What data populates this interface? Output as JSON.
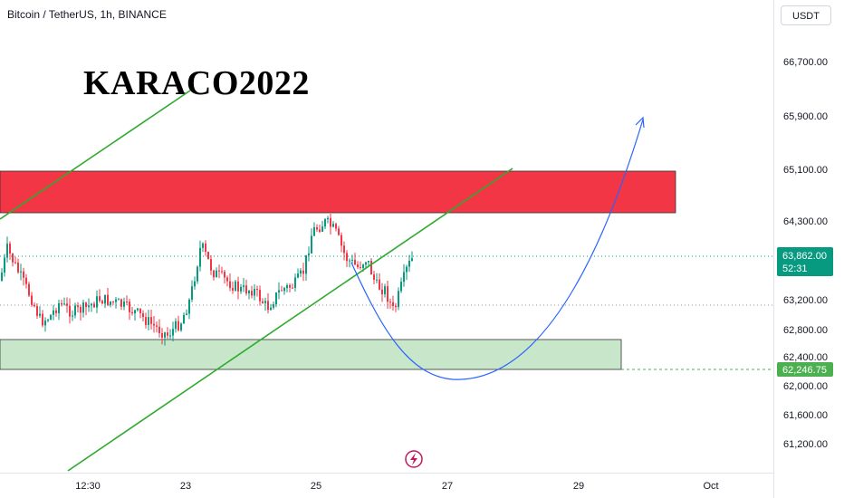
{
  "header": {
    "title": "Bitcoin / TetherUS, 1h, BINANCE"
  },
  "watermark": "KARACO2022",
  "currency": "USDT",
  "chart_data": {
    "type": "candlestick",
    "symbol": "BTCUSDT",
    "y_ticks": [
      "66,700.00",
      "65,900.00",
      "65,100.00",
      "64,300.00",
      "63,200.00",
      "62,800.00",
      "62,400.00",
      "62,000.00",
      "61,600.00",
      "61,200.00"
    ],
    "y_tick_values": [
      66700,
      65900,
      65100,
      64300,
      63200,
      62800,
      62400,
      62000,
      61600,
      61200
    ],
    "x_ticks": [
      "12:30",
      "23",
      "25",
      "27",
      "29",
      "Oct"
    ],
    "current_price": {
      "label": "63,862.00",
      "countdown": "52:31",
      "value": 63862,
      "color": "#089981"
    },
    "level_tag": {
      "label": "62,246.75",
      "value": 62246.75,
      "color": "#4caf50"
    },
    "resistance_zone": {
      "low": 64330,
      "high": 65150,
      "color": "#f23645"
    },
    "support_zone": {
      "low": 62250,
      "high": 62600,
      "color": "#4caf50"
    },
    "up_color": "#089981",
    "down_color": "#f23645",
    "trendline_color": "#2eaa2e",
    "projection_color": "#2962ff"
  }
}
